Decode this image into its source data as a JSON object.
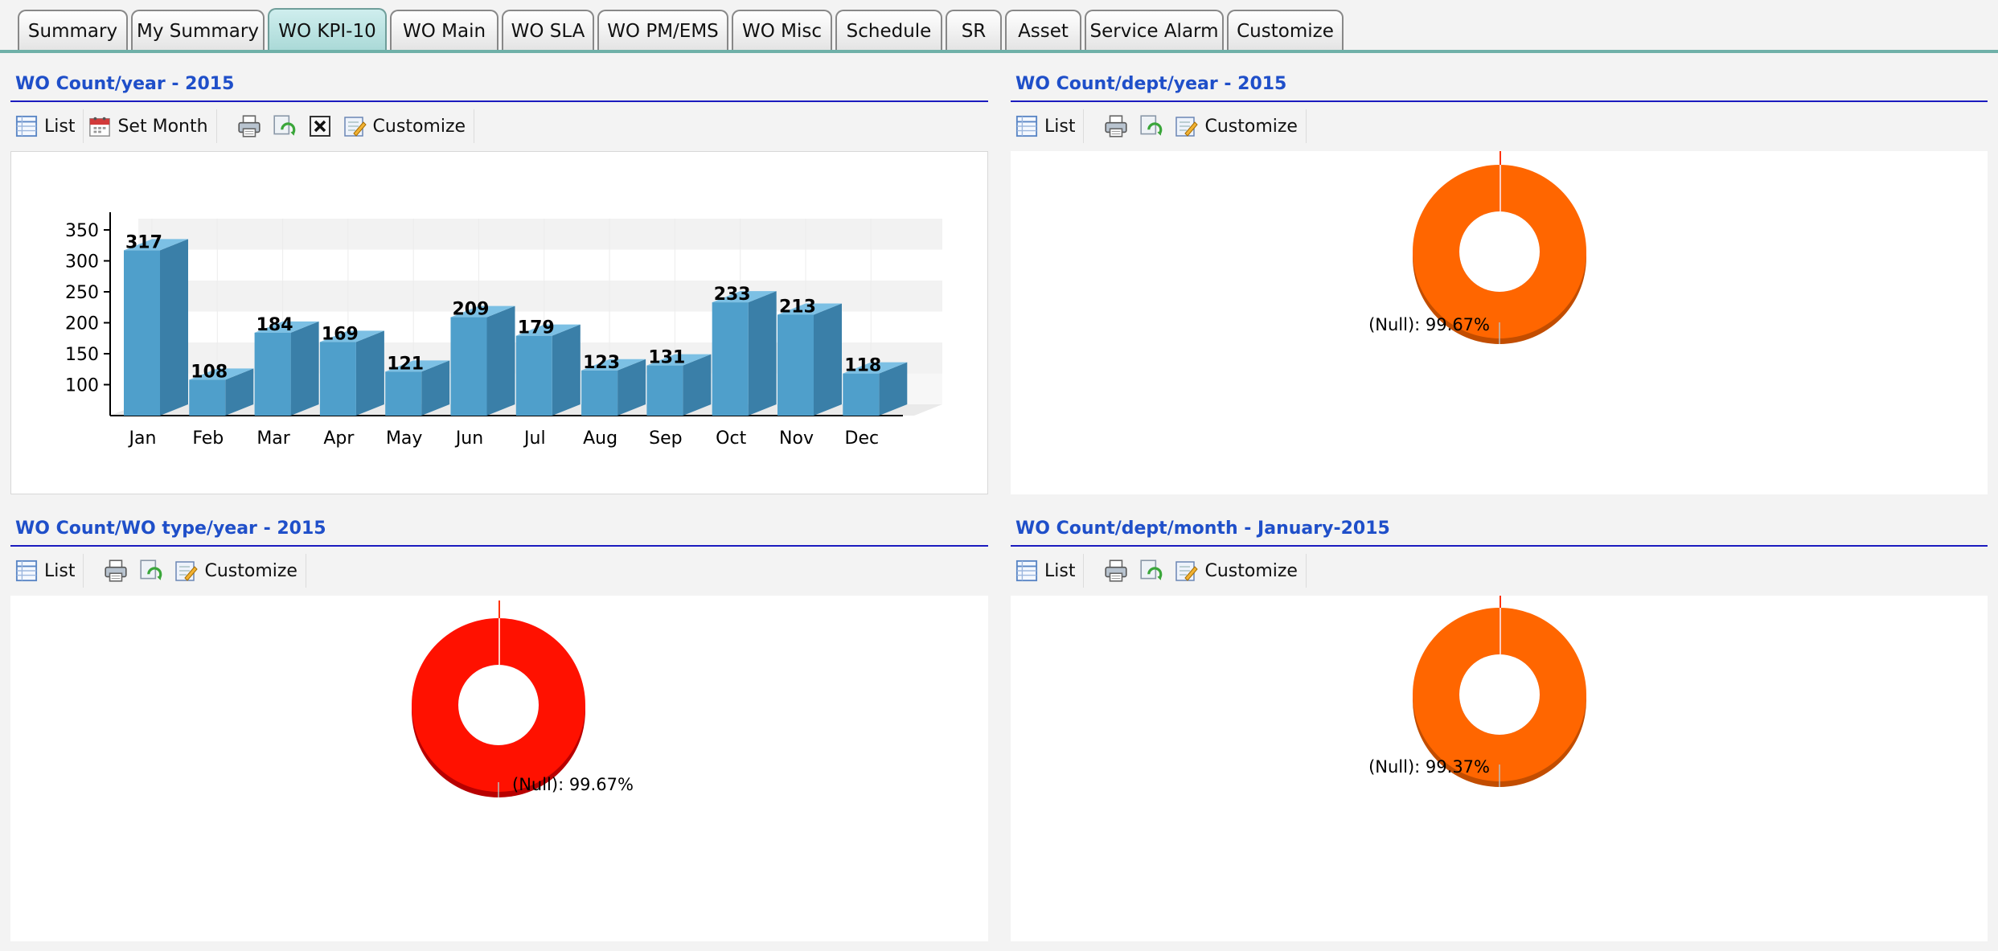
{
  "tabs": [
    "Summary",
    "My Summary",
    "WO KPI-10",
    "WO Main",
    "WO SLA",
    "WO PM/EMS",
    "WO Misc",
    "Schedule",
    "SR",
    "Asset",
    "Service Alarm",
    "Customize"
  ],
  "active_tab": "WO KPI-10",
  "toolbar": {
    "list_label": "List",
    "set_month_label": "Set Month",
    "customize_label": "Customize"
  },
  "icons": [
    "list-icon",
    "calendar-icon",
    "print-icon",
    "refresh-icon",
    "close-icon",
    "customize-icon"
  ],
  "colors": {
    "title": "#1f4fc9",
    "bar": "#4f9fcb",
    "donut_orange": "#ff6600",
    "donut_red": "#ff1100",
    "tab_active": "#a8d8d6"
  },
  "panels": [
    {
      "title": "WO Count/year - 2015"
    },
    {
      "title": "WO Count/dept/year - 2015"
    },
    {
      "title": "WO Count/WO type/year - 2015"
    },
    {
      "title": "WO Count/dept/month - January-2015"
    }
  ],
  "chart_data": [
    {
      "type": "bar",
      "title": "WO Count/year - 2015",
      "categories": [
        "Jan",
        "Feb",
        "Mar",
        "Apr",
        "May",
        "Jun",
        "Jul",
        "Aug",
        "Sep",
        "Oct",
        "Nov",
        "Dec"
      ],
      "values": [
        317,
        108,
        184,
        169,
        121,
        209,
        179,
        123,
        131,
        233,
        213,
        118
      ],
      "data_labels": [
        "317",
        "108",
        "184",
        "169",
        "121",
        "209",
        "179",
        "123",
        "131",
        "233",
        "213",
        "118"
      ],
      "y_ticks": [
        100,
        150,
        200,
        250,
        300,
        350
      ],
      "y_tick_labels": [
        "100",
        "150",
        "200",
        "250",
        "300",
        "350"
      ],
      "ylim": [
        50,
        350
      ],
      "grid": true
    },
    {
      "type": "pie",
      "title": "WO Count/dept/year - 2015",
      "slices": [
        {
          "label": "(Null)",
          "value": 99.67
        }
      ],
      "label_text": "(Null): 99.67%",
      "color": "#ff6600"
    },
    {
      "type": "pie",
      "title": "WO Count/WO type/year - 2015",
      "slices": [
        {
          "label": "(Null)",
          "value": 99.67
        }
      ],
      "label_text": "(Null): 99.67%",
      "color": "#ff1100"
    },
    {
      "type": "pie",
      "title": "WO Count/dept/month - January-2015",
      "slices": [
        {
          "label": "(Null)",
          "value": 99.37
        }
      ],
      "label_text": "(Null): 99.37%",
      "color": "#ff6600"
    }
  ]
}
